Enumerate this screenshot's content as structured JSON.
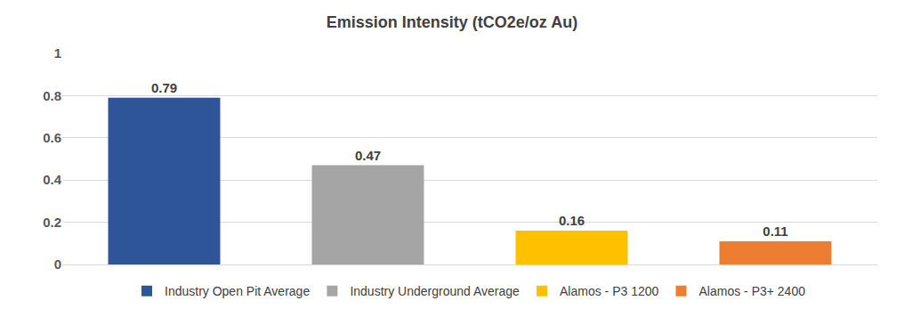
{
  "chart_data": {
    "type": "bar",
    "title": "Emission Intensity (tCO2e/oz Au)",
    "categories": [
      "Industry Open Pit Average",
      "Industry Underground Average",
      "Alamos - P3 1200",
      "Alamos - P3+ 2400"
    ],
    "values": [
      0.79,
      0.47,
      0.16,
      0.11
    ],
    "colors": [
      "#2E5597",
      "#A5A5A5",
      "#FFC000",
      "#ED7D31"
    ],
    "ylim": [
      0,
      1
    ],
    "yticks": [
      0,
      0.2,
      0.4,
      0.6,
      0.8,
      1
    ],
    "grid": true,
    "legend": "bottom",
    "data_labels": true,
    "tick_labels": "y"
  }
}
